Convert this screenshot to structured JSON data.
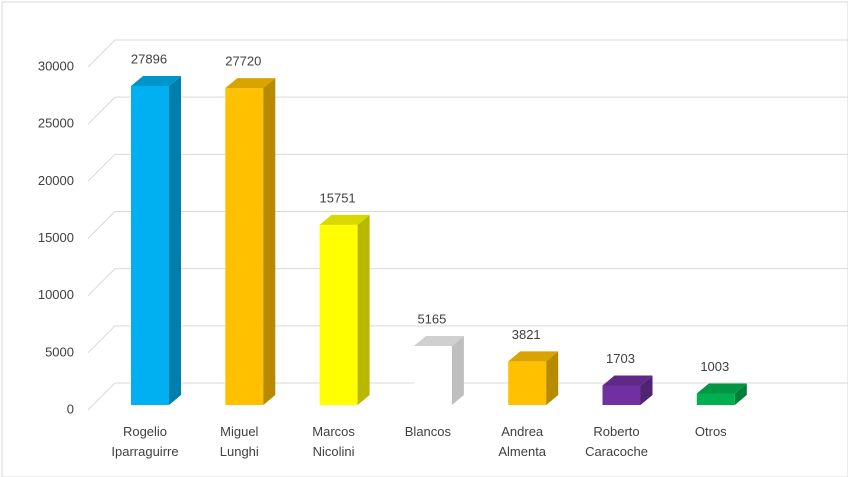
{
  "chart_data": {
    "type": "bar3d",
    "categories": [
      "Rogelio Iparraguirre",
      "Miguel Lunghi",
      "Marcos Nicolini",
      "Blancos",
      "Andrea Almenta",
      "Roberto Caracoche",
      "Otros"
    ],
    "values": [
      27896,
      27720,
      15751,
      5165,
      3821,
      1703,
      1003
    ],
    "colors": [
      "#00b0f0",
      "#ffc000",
      "#ffff00",
      "#ffffff",
      "#ffc000",
      "#7030a0",
      "#00b050"
    ],
    "ylim": [
      0,
      30000
    ],
    "yticks": [
      0,
      5000,
      10000,
      15000,
      20000,
      25000,
      30000
    ],
    "grid": true
  }
}
